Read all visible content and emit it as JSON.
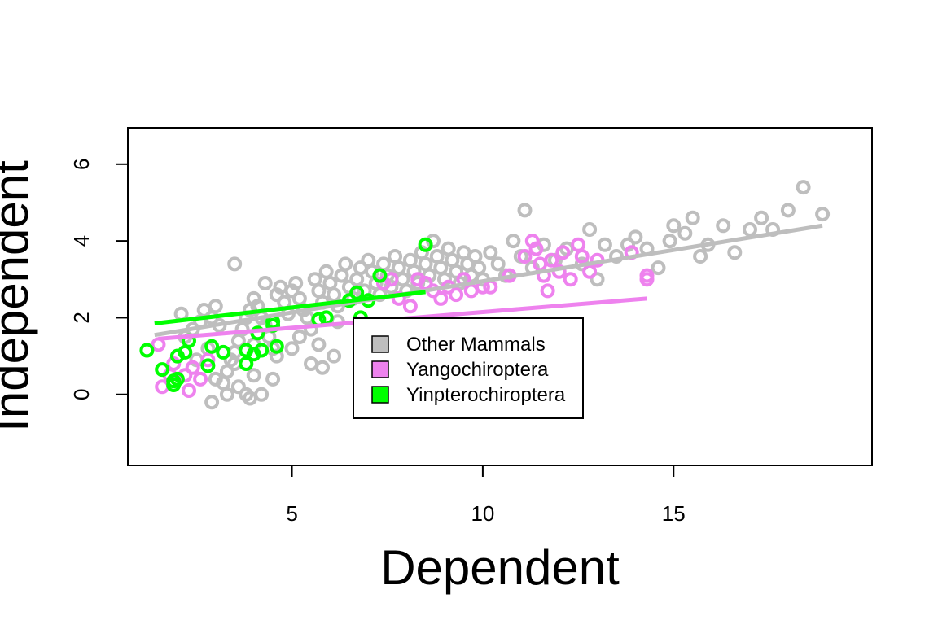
{
  "chart_data": {
    "type": "scatter",
    "title": "",
    "xlabel": "Dependent",
    "ylabel": "Independent",
    "xlim": [
      0.7,
      20.2
    ],
    "ylim": [
      -1.85,
      6.95
    ],
    "x_ticks": [
      5,
      10,
      15
    ],
    "y_ticks": [
      0,
      2,
      4,
      6
    ],
    "grid": false,
    "legend_position": "center",
    "series": [
      {
        "name": "Other Mammals",
        "color": "#bebebe",
        "points": [
          [
            2.1,
            2.1
          ],
          [
            2.2,
            1.5
          ],
          [
            2.4,
            1.7
          ],
          [
            2.6,
            1.9
          ],
          [
            2.7,
            2.2
          ],
          [
            2.9,
            2.0
          ],
          [
            3.0,
            2.3
          ],
          [
            3.1,
            1.8
          ],
          [
            3.2,
            0.3
          ],
          [
            3.3,
            0.6
          ],
          [
            3.4,
            0.9
          ],
          [
            3.5,
            1.1
          ],
          [
            3.6,
            1.4
          ],
          [
            3.7,
            1.7
          ],
          [
            3.8,
            2.0
          ],
          [
            3.9,
            2.2
          ],
          [
            4.0,
            2.5
          ],
          [
            4.1,
            2.3
          ],
          [
            4.2,
            2.0
          ],
          [
            4.3,
            1.8
          ],
          [
            4.4,
            1.5
          ],
          [
            4.5,
            1.2
          ],
          [
            4.6,
            2.6
          ],
          [
            4.7,
            2.8
          ],
          [
            4.8,
            2.4
          ],
          [
            4.9,
            2.1
          ],
          [
            5.0,
            2.7
          ],
          [
            5.1,
            2.9
          ],
          [
            5.2,
            2.5
          ],
          [
            5.3,
            2.2
          ],
          [
            5.4,
            2.0
          ],
          [
            5.5,
            1.7
          ],
          [
            5.6,
            3.0
          ],
          [
            5.7,
            2.7
          ],
          [
            5.8,
            2.4
          ],
          [
            5.9,
            3.2
          ],
          [
            6.0,
            2.9
          ],
          [
            6.1,
            2.6
          ],
          [
            6.2,
            2.3
          ],
          [
            6.3,
            3.1
          ],
          [
            6.4,
            3.4
          ],
          [
            6.5,
            2.8
          ],
          [
            6.6,
            2.5
          ],
          [
            6.7,
            3.0
          ],
          [
            6.8,
            3.3
          ],
          [
            6.9,
            2.7
          ],
          [
            7.0,
            3.5
          ],
          [
            7.1,
            3.2
          ],
          [
            7.2,
            2.9
          ],
          [
            7.3,
            2.6
          ],
          [
            7.4,
            3.4
          ],
          [
            7.5,
            3.1
          ],
          [
            7.6,
            2.8
          ],
          [
            7.7,
            3.6
          ],
          [
            7.8,
            3.3
          ],
          [
            7.9,
            3.0
          ],
          [
            8.0,
            2.7
          ],
          [
            8.1,
            3.5
          ],
          [
            8.2,
            3.2
          ],
          [
            8.3,
            2.9
          ],
          [
            8.4,
            3.7
          ],
          [
            8.5,
            3.4
          ],
          [
            8.6,
            3.1
          ],
          [
            8.7,
            4.0
          ],
          [
            8.8,
            3.6
          ],
          [
            8.9,
            3.3
          ],
          [
            9.0,
            3.0
          ],
          [
            9.1,
            3.8
          ],
          [
            9.2,
            3.5
          ],
          [
            9.3,
            3.2
          ],
          [
            9.4,
            2.9
          ],
          [
            9.5,
            3.7
          ],
          [
            9.6,
            3.4
          ],
          [
            9.7,
            3.1
          ],
          [
            9.8,
            3.6
          ],
          [
            9.9,
            3.3
          ],
          [
            10.0,
            3.0
          ],
          [
            10.2,
            3.7
          ],
          [
            10.4,
            3.4
          ],
          [
            10.6,
            3.1
          ],
          [
            10.8,
            4.0
          ],
          [
            11.0,
            3.6
          ],
          [
            11.1,
            4.8
          ],
          [
            11.3,
            3.3
          ],
          [
            11.6,
            3.9
          ],
          [
            11.9,
            3.5
          ],
          [
            12.2,
            3.8
          ],
          [
            12.6,
            3.4
          ],
          [
            12.8,
            4.3
          ],
          [
            13.0,
            3.0
          ],
          [
            13.2,
            3.9
          ],
          [
            13.5,
            3.6
          ],
          [
            13.8,
            3.9
          ],
          [
            14.0,
            4.1
          ],
          [
            14.3,
            3.8
          ],
          [
            14.6,
            3.3
          ],
          [
            14.9,
            4.0
          ],
          [
            15.0,
            4.4
          ],
          [
            15.3,
            4.2
          ],
          [
            15.5,
            4.6
          ],
          [
            15.7,
            3.6
          ],
          [
            15.9,
            3.9
          ],
          [
            16.3,
            4.4
          ],
          [
            16.6,
            3.7
          ],
          [
            17.0,
            4.3
          ],
          [
            17.3,
            4.6
          ],
          [
            17.6,
            4.3
          ],
          [
            18.0,
            4.8
          ],
          [
            18.4,
            5.4
          ],
          [
            18.9,
            4.7
          ],
          [
            2.5,
            0.9
          ],
          [
            2.8,
            1.2
          ],
          [
            3.0,
            0.4
          ],
          [
            3.3,
            0.0
          ],
          [
            3.6,
            0.2
          ],
          [
            3.9,
            -0.1
          ],
          [
            4.0,
            0.5
          ],
          [
            4.2,
            0.0
          ],
          [
            3.8,
            0.0
          ],
          [
            4.5,
            0.4
          ],
          [
            2.9,
            -0.2
          ],
          [
            4.3,
            2.9
          ],
          [
            4.0,
            1.3
          ],
          [
            3.5,
            0.8
          ],
          [
            4.6,
            1.0
          ],
          [
            5.0,
            1.2
          ],
          [
            5.2,
            1.5
          ],
          [
            5.5,
            0.8
          ],
          [
            5.8,
            0.7
          ],
          [
            6.1,
            1.0
          ],
          [
            3.5,
            3.4
          ],
          [
            5.7,
            1.3
          ],
          [
            6.2,
            1.9
          ]
        ]
      },
      {
        "name": "Yangochiroptera",
        "color": "#ee82ee",
        "points": [
          [
            1.5,
            1.3
          ],
          [
            1.6,
            0.2
          ],
          [
            1.8,
            0.5
          ],
          [
            1.9,
            0.8
          ],
          [
            2.0,
            1.0
          ],
          [
            2.2,
            0.5
          ],
          [
            2.3,
            0.1
          ],
          [
            2.4,
            0.7
          ],
          [
            2.6,
            0.4
          ],
          [
            2.8,
            0.9
          ],
          [
            7.4,
            2.9
          ],
          [
            7.6,
            3.0
          ],
          [
            7.8,
            2.5
          ],
          [
            8.1,
            2.3
          ],
          [
            8.3,
            3.0
          ],
          [
            8.5,
            2.9
          ],
          [
            8.7,
            2.7
          ],
          [
            8.9,
            2.5
          ],
          [
            9.1,
            2.8
          ],
          [
            9.3,
            2.6
          ],
          [
            9.5,
            3.0
          ],
          [
            9.7,
            2.7
          ],
          [
            10.0,
            2.8
          ],
          [
            10.2,
            2.8
          ],
          [
            10.7,
            3.1
          ],
          [
            11.1,
            3.6
          ],
          [
            11.3,
            4.0
          ],
          [
            11.4,
            3.8
          ],
          [
            11.5,
            3.4
          ],
          [
            11.6,
            3.1
          ],
          [
            11.7,
            2.7
          ],
          [
            11.8,
            3.5
          ],
          [
            12.0,
            3.2
          ],
          [
            12.1,
            3.7
          ],
          [
            12.3,
            3.0
          ],
          [
            12.5,
            3.9
          ],
          [
            12.6,
            3.6
          ],
          [
            12.8,
            3.2
          ],
          [
            13.0,
            3.5
          ],
          [
            13.9,
            3.7
          ],
          [
            14.3,
            3.0
          ],
          [
            14.3,
            3.1
          ]
        ]
      },
      {
        "name": "Yinpterochiroptera",
        "color": "#00ff00",
        "points": [
          [
            1.2,
            1.15
          ],
          [
            1.6,
            0.65
          ],
          [
            1.9,
            0.35
          ],
          [
            1.9,
            0.25
          ],
          [
            2.0,
            0.4
          ],
          [
            2.0,
            1.0
          ],
          [
            2.2,
            1.1
          ],
          [
            2.3,
            1.4
          ],
          [
            2.8,
            0.75
          ],
          [
            2.9,
            1.25
          ],
          [
            3.2,
            1.1
          ],
          [
            3.8,
            1.15
          ],
          [
            3.8,
            0.8
          ],
          [
            4.0,
            1.05
          ],
          [
            4.1,
            1.6
          ],
          [
            4.2,
            1.15
          ],
          [
            4.5,
            1.8
          ],
          [
            4.5,
            1.9
          ],
          [
            4.6,
            1.25
          ],
          [
            5.7,
            1.95
          ],
          [
            5.9,
            2.0
          ],
          [
            6.5,
            2.45
          ],
          [
            6.7,
            2.65
          ],
          [
            6.8,
            2.0
          ],
          [
            7.0,
            2.45
          ],
          [
            7.3,
            3.1
          ],
          [
            8.5,
            3.9
          ]
        ]
      }
    ],
    "fit_lines": [
      {
        "name": "Other Mammals",
        "color": "#bebebe",
        "x": [
          1.4,
          18.9
        ],
        "y": [
          1.55,
          4.4
        ]
      },
      {
        "name": "Yangochiroptera",
        "color": "#ee82ee",
        "x": [
          1.5,
          14.3
        ],
        "y": [
          1.45,
          2.5
        ]
      },
      {
        "name": "Yinpterochiroptera",
        "color": "#00ff00",
        "x": [
          1.4,
          8.5
        ],
        "y": [
          1.85,
          2.67
        ]
      }
    ]
  }
}
